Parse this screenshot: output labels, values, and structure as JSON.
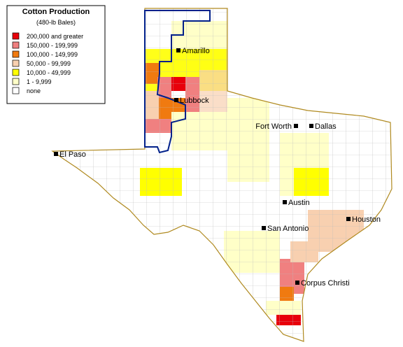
{
  "legend": {
    "title": "Cotton Production",
    "subtitle": "(480-lb Bales)",
    "items": [
      {
        "label": "200,000 and greater",
        "color": "#e8000b"
      },
      {
        "label": "150,000 - 199,999",
        "color": "#f08080"
      },
      {
        "label": "100,000 - 149,999",
        "color": "#f07a10"
      },
      {
        "label": "50,000 - 99,999",
        "color": "#f8d0b0"
      },
      {
        "label": "10,000 - 49,999",
        "color": "#ffff00"
      },
      {
        "label": "1 - 9,999",
        "color": "#ffffc8"
      },
      {
        "label": "none",
        "color": "#ffffff"
      }
    ]
  },
  "cities": [
    {
      "name": "Amarillo"
    },
    {
      "name": "Lubbock"
    },
    {
      "name": "Fort Worth"
    },
    {
      "name": "Dallas"
    },
    {
      "name": "El Paso"
    },
    {
      "name": "Austin"
    },
    {
      "name": "San Antonio"
    },
    {
      "name": "Houston"
    },
    {
      "name": "Corpus Christi"
    }
  ]
}
